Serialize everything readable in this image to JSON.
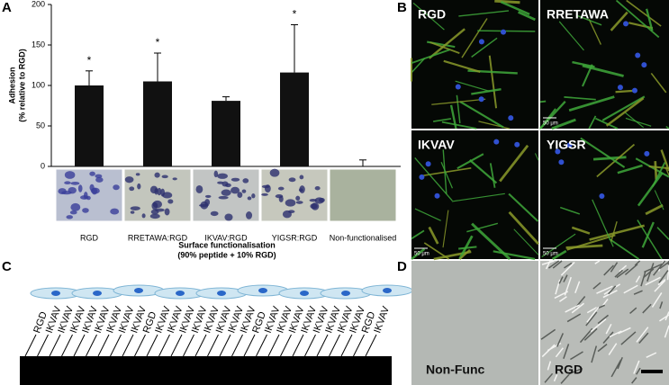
{
  "chart_data": {
    "type": "bar",
    "panel_label": "A",
    "ylabel": [
      "Adhesion",
      "(% relative to RGD)"
    ],
    "xlabel": [
      "Surface functionalisation",
      "(90% peptide + 10% RGD)"
    ],
    "categories": [
      "RGD",
      "RRETAWA:RGD",
      "IKVAV:RGD",
      "YIGSR:RGD",
      "Non-functionalised"
    ],
    "values": [
      100,
      105,
      81,
      116,
      0
    ],
    "errors": [
      18,
      35,
      5,
      59,
      8
    ],
    "significance": [
      "*",
      "*",
      null,
      "*",
      null
    ],
    "color": "#111111",
    "ylim": [
      0,
      200
    ],
    "yticks": [
      0,
      50,
      100,
      150,
      200
    ]
  },
  "panel_b": {
    "label": "B",
    "images": [
      "RGD",
      "RRETAWA",
      "IKVAV",
      "YIGSR"
    ],
    "scale_bar": "50 μm"
  },
  "panel_c": {
    "label": "C",
    "peptides": [
      "RGD",
      "IKVAV",
      "IKVAV",
      "IKVAV",
      "IKVAV",
      "IKVAV",
      "IKVAV",
      "IKVAV",
      "IKVAV",
      "RGD",
      "IKVAV",
      "IKVAV",
      "IKVAV",
      "IKVAV",
      "IKVAV",
      "IKVAV",
      "IKVAV",
      "IKVAV",
      "RGD",
      "IKVAV",
      "IKVAV",
      "IKVAV",
      "IKVAV",
      "IKVAV",
      "IKVAV",
      "IKVAV",
      "IKVAV",
      "RGD",
      "IKVAV"
    ]
  },
  "panel_d": {
    "label": "D",
    "images": [
      "Non-Func",
      "RGD"
    ]
  }
}
